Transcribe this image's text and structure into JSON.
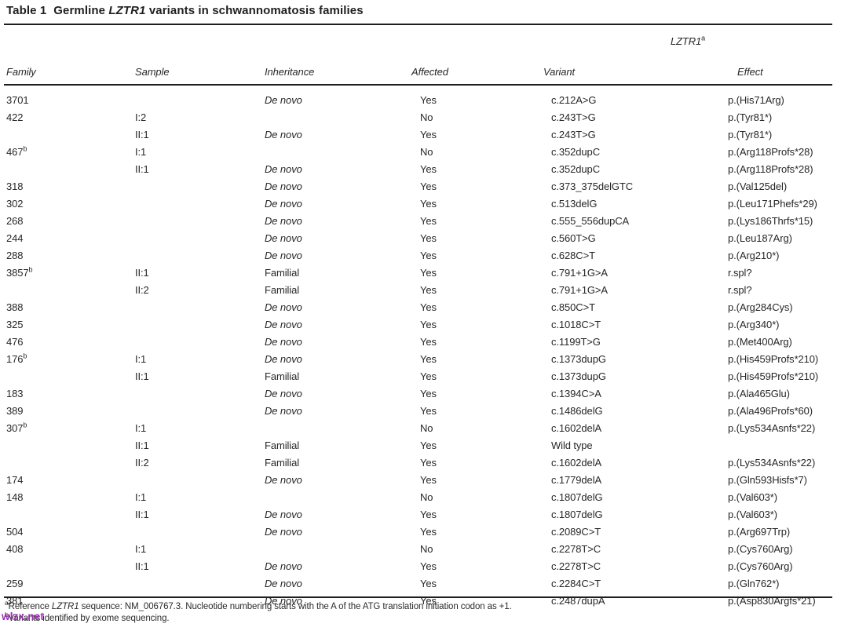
{
  "title": {
    "label": "Table 1",
    "pre_gene": "Germline ",
    "gene": "LZTR1",
    "post_gene": " variants in schwannomatosis families"
  },
  "table": {
    "group_header": {
      "gene": "LZTR1",
      "sup": "a"
    },
    "columns": [
      "Family",
      "Sample",
      "Inheritance",
      "Affected",
      "Variant",
      "Effect"
    ],
    "rows": [
      {
        "family": "3701",
        "sample": "",
        "inheritance": "De novo",
        "affected": "Yes",
        "variant": "c.212A>G",
        "effect": "p.(His71Arg)"
      },
      {
        "family": "422",
        "sample": "I:2",
        "inheritance": "",
        "affected": "No",
        "variant": "c.243T>G",
        "effect": "p.(Tyr81*)"
      },
      {
        "family": "",
        "sample": "II:1",
        "inheritance": "De novo",
        "affected": "Yes",
        "variant": "c.243T>G",
        "effect": "p.(Tyr81*)"
      },
      {
        "family": "467",
        "family_sup": "b",
        "sample": "I:1",
        "inheritance": "",
        "affected": "No",
        "variant": "c.352dupC",
        "effect": "p.(Arg118Profs*28)"
      },
      {
        "family": "",
        "sample": "II:1",
        "inheritance": "De novo",
        "affected": "Yes",
        "variant": "c.352dupC",
        "effect": "p.(Arg118Profs*28)"
      },
      {
        "family": "318",
        "sample": "",
        "inheritance": "De novo",
        "affected": "Yes",
        "variant": "c.373_375delGTC",
        "effect": "p.(Val125del)"
      },
      {
        "family": "302",
        "sample": "",
        "inheritance": "De novo",
        "affected": "Yes",
        "variant": "c.513delG",
        "effect": "p.(Leu171Phefs*29)"
      },
      {
        "family": "268",
        "sample": "",
        "inheritance": "De novo",
        "affected": "Yes",
        "variant": "c.555_556dupCA",
        "effect": "p.(Lys186Thrfs*15)"
      },
      {
        "family": "244",
        "sample": "",
        "inheritance": "De novo",
        "affected": "Yes",
        "variant": "c.560T>G",
        "effect": "p.(Leu187Arg)"
      },
      {
        "family": "288",
        "sample": "",
        "inheritance": "De novo",
        "affected": "Yes",
        "variant": "c.628C>T",
        "effect": "p.(Arg210*)"
      },
      {
        "family": "3857",
        "family_sup": "b",
        "sample": "II:1",
        "inheritance": "Familial",
        "affected": "Yes",
        "variant": "c.791+1G>A",
        "effect": "r.spl?"
      },
      {
        "family": "",
        "sample": "II:2",
        "inheritance": "Familial",
        "affected": "Yes",
        "variant": "c.791+1G>A",
        "effect": "r.spl?"
      },
      {
        "family": "388",
        "sample": "",
        "inheritance": "De novo",
        "affected": "Yes",
        "variant": "c.850C>T",
        "effect": "p.(Arg284Cys)"
      },
      {
        "family": "325",
        "sample": "",
        "inheritance": "De novo",
        "affected": "Yes",
        "variant": "c.1018C>T",
        "effect": "p.(Arg340*)"
      },
      {
        "family": "476",
        "sample": "",
        "inheritance": "De novo",
        "affected": "Yes",
        "variant": "c.1199T>G",
        "effect": "p.(Met400Arg)"
      },
      {
        "family": "176",
        "family_sup": "b",
        "sample": "I:1",
        "inheritance": "De novo",
        "affected": "Yes",
        "variant": "c.1373dupG",
        "effect": "p.(His459Profs*210)"
      },
      {
        "family": "",
        "sample": "II:1",
        "inheritance": "Familial",
        "affected": "Yes",
        "variant": "c.1373dupG",
        "effect": "p.(His459Profs*210)"
      },
      {
        "family": "183",
        "sample": "",
        "inheritance": "De novo",
        "affected": "Yes",
        "variant": "c.1394C>A",
        "effect": "p.(Ala465Glu)"
      },
      {
        "family": "389",
        "sample": "",
        "inheritance": "De novo",
        "affected": "Yes",
        "variant": "c.1486delG",
        "effect": "p.(Ala496Profs*60)"
      },
      {
        "family": "307",
        "family_sup": "b",
        "sample": "I:1",
        "inheritance": "",
        "affected": "No",
        "variant": "c.1602delA",
        "effect": "p.(Lys534Asnfs*22)"
      },
      {
        "family": "",
        "sample": "II:1",
        "inheritance": "Familial",
        "affected": "Yes",
        "variant": "Wild type",
        "effect": ""
      },
      {
        "family": "",
        "sample": "II:2",
        "inheritance": "Familial",
        "affected": "Yes",
        "variant": "c.1602delA",
        "effect": "p.(Lys534Asnfs*22)"
      },
      {
        "family": "174",
        "sample": "",
        "inheritance": "De novo",
        "affected": "Yes",
        "variant": "c.1779delA",
        "effect": "p.(Gln593Hisfs*7)"
      },
      {
        "family": "148",
        "sample": "I:1",
        "inheritance": "",
        "affected": "No",
        "variant": "c.1807delG",
        "effect": "p.(Val603*)"
      },
      {
        "family": "",
        "sample": "II:1",
        "inheritance": "De novo",
        "affected": "Yes",
        "variant": "c.1807delG",
        "effect": "p.(Val603*)"
      },
      {
        "family": "504",
        "sample": "",
        "inheritance": "De novo",
        "affected": "Yes",
        "variant": "c.2089C>T",
        "effect": "p.(Arg697Trp)"
      },
      {
        "family": "408",
        "sample": "I:1",
        "inheritance": "",
        "affected": "No",
        "variant": "c.2278T>C",
        "effect": "p.(Cys760Arg)"
      },
      {
        "family": "",
        "sample": "II:1",
        "inheritance": "De novo",
        "affected": "Yes",
        "variant": "c.2278T>C",
        "effect": "p.(Cys760Arg)"
      },
      {
        "family": "259",
        "sample": "",
        "inheritance": "De novo",
        "affected": "Yes",
        "variant": "c.2284C>T",
        "effect": "p.(Gln762*)"
      },
      {
        "family": "381",
        "sample": "",
        "inheritance": "De novo",
        "affected": "Yes",
        "variant": "c.2487dupA",
        "effect": "p.(Asp830Argfs*21)"
      }
    ]
  },
  "footnotes": {
    "a": {
      "sup": "a",
      "pre": "Reference ",
      "gene": "LZTR1",
      "post": " sequence: NM_006767.3. Nucleotide numbering starts with the A of the ATG translation initiation codon as +1."
    },
    "b": {
      "sup": "b",
      "text": "Variants identified by exome sequencing."
    }
  },
  "watermark": {
    "text": "wlzx.net",
    "color": "#9b2fb5"
  }
}
